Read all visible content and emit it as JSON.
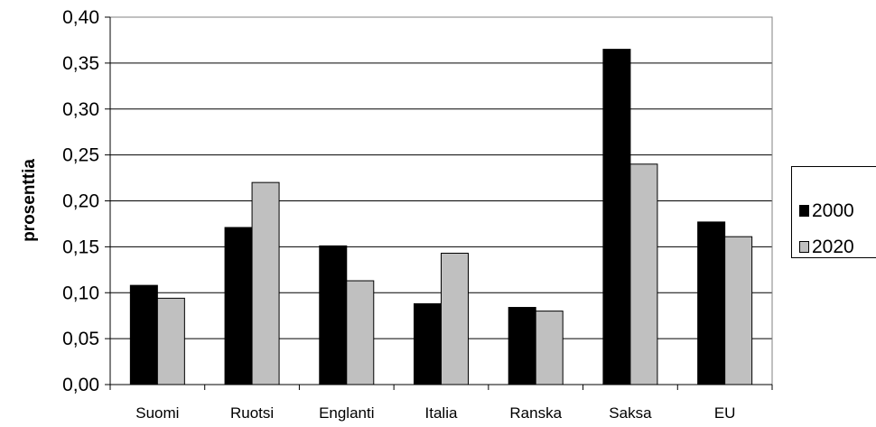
{
  "chart_data": {
    "type": "bar",
    "title": "",
    "xlabel": "",
    "ylabel": "prosenttia",
    "ylim": [
      0,
      0.4
    ],
    "yticks": [
      "0,00",
      "0,05",
      "0,10",
      "0,15",
      "0,20",
      "0,25",
      "0,30",
      "0,35",
      "0,40"
    ],
    "grid": true,
    "legend_position": "right",
    "categories": [
      "Suomi",
      "Ruotsi",
      "Englanti",
      "Italia",
      "Ranska",
      "Saksa",
      "EU"
    ],
    "series": [
      {
        "name": "2000",
        "color": "#000000",
        "values": [
          0.108,
          0.171,
          0.151,
          0.088,
          0.084,
          0.365,
          0.177
        ]
      },
      {
        "name": "2020",
        "color": "#c0c0c0",
        "values": [
          0.094,
          0.22,
          0.113,
          0.143,
          0.08,
          0.24,
          0.161
        ]
      }
    ]
  }
}
